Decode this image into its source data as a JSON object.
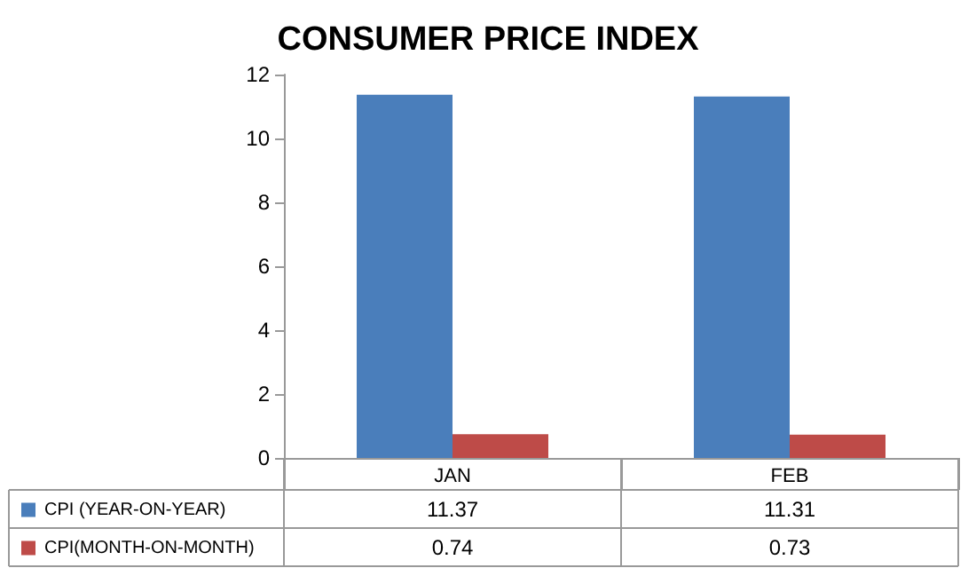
{
  "chart_data": {
    "type": "bar",
    "title": "CONSUMER PRICE INDEX",
    "categories": [
      "JAN",
      "FEB"
    ],
    "series": [
      {
        "name": "CPI (YEAR-ON-YEAR)",
        "color": "#4a7ebb",
        "values": [
          11.37,
          11.31
        ]
      },
      {
        "name": "CPI(MONTH-ON-MONTH)",
        "color": "#be4b48",
        "values": [
          0.74,
          0.73
        ]
      }
    ],
    "ylim": [
      0,
      12
    ],
    "yticks": [
      0,
      2,
      4,
      6,
      8,
      10,
      12
    ],
    "legend": "bottom left",
    "data_labels": true
  }
}
